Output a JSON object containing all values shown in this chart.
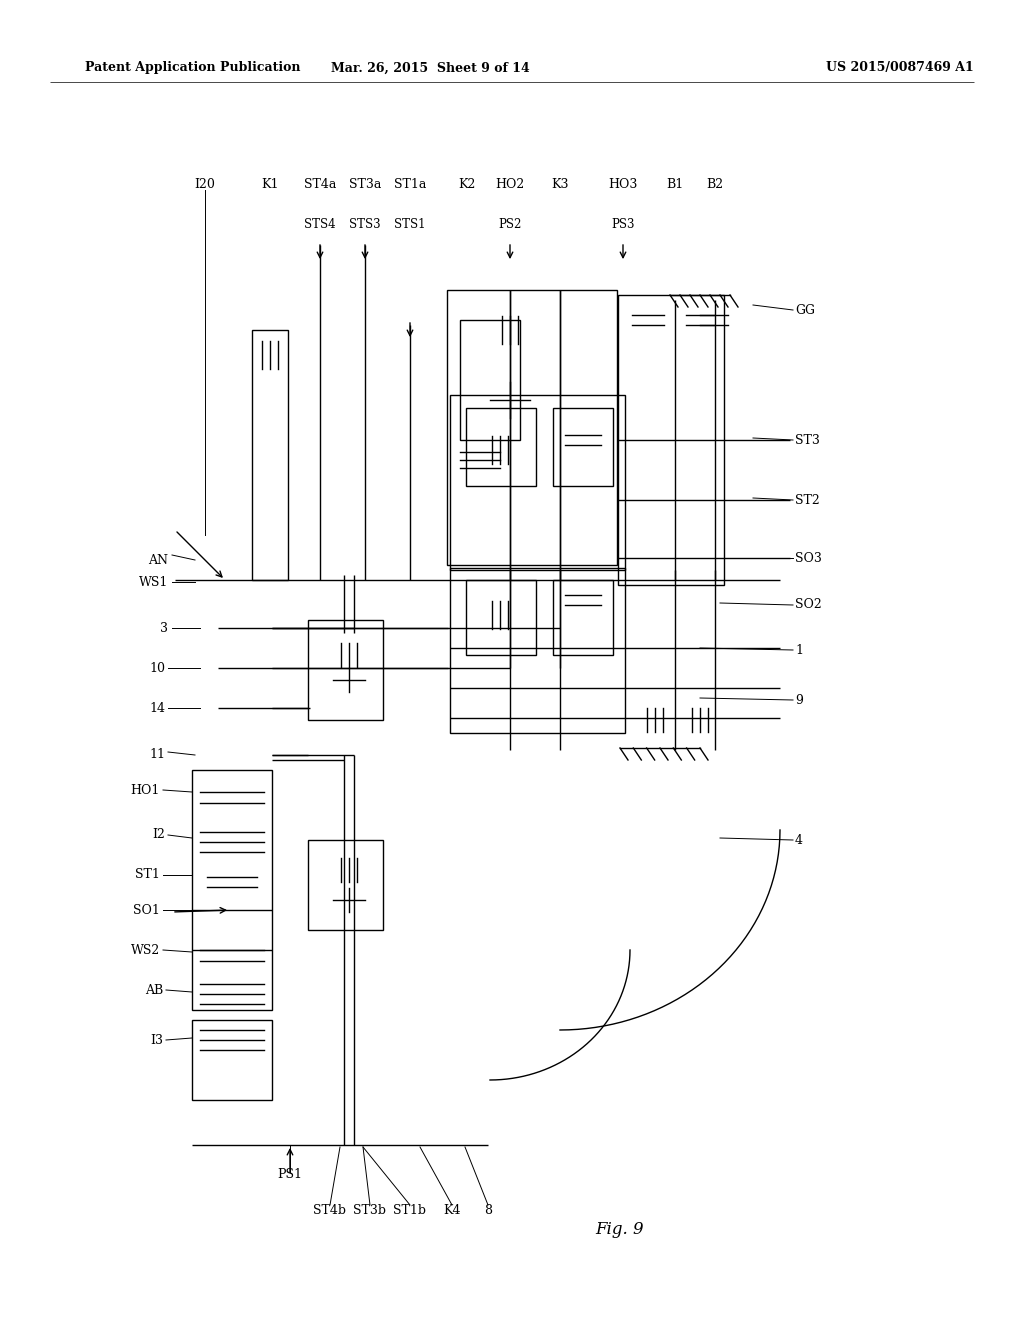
{
  "bg_color": "#ffffff",
  "line_color": "#000000",
  "header_left": "Patent Application Publication",
  "header_mid": "Mar. 26, 2015  Sheet 9 of 14",
  "header_right": "US 2015/0087469 A1",
  "figure_label": "Fig. 9"
}
